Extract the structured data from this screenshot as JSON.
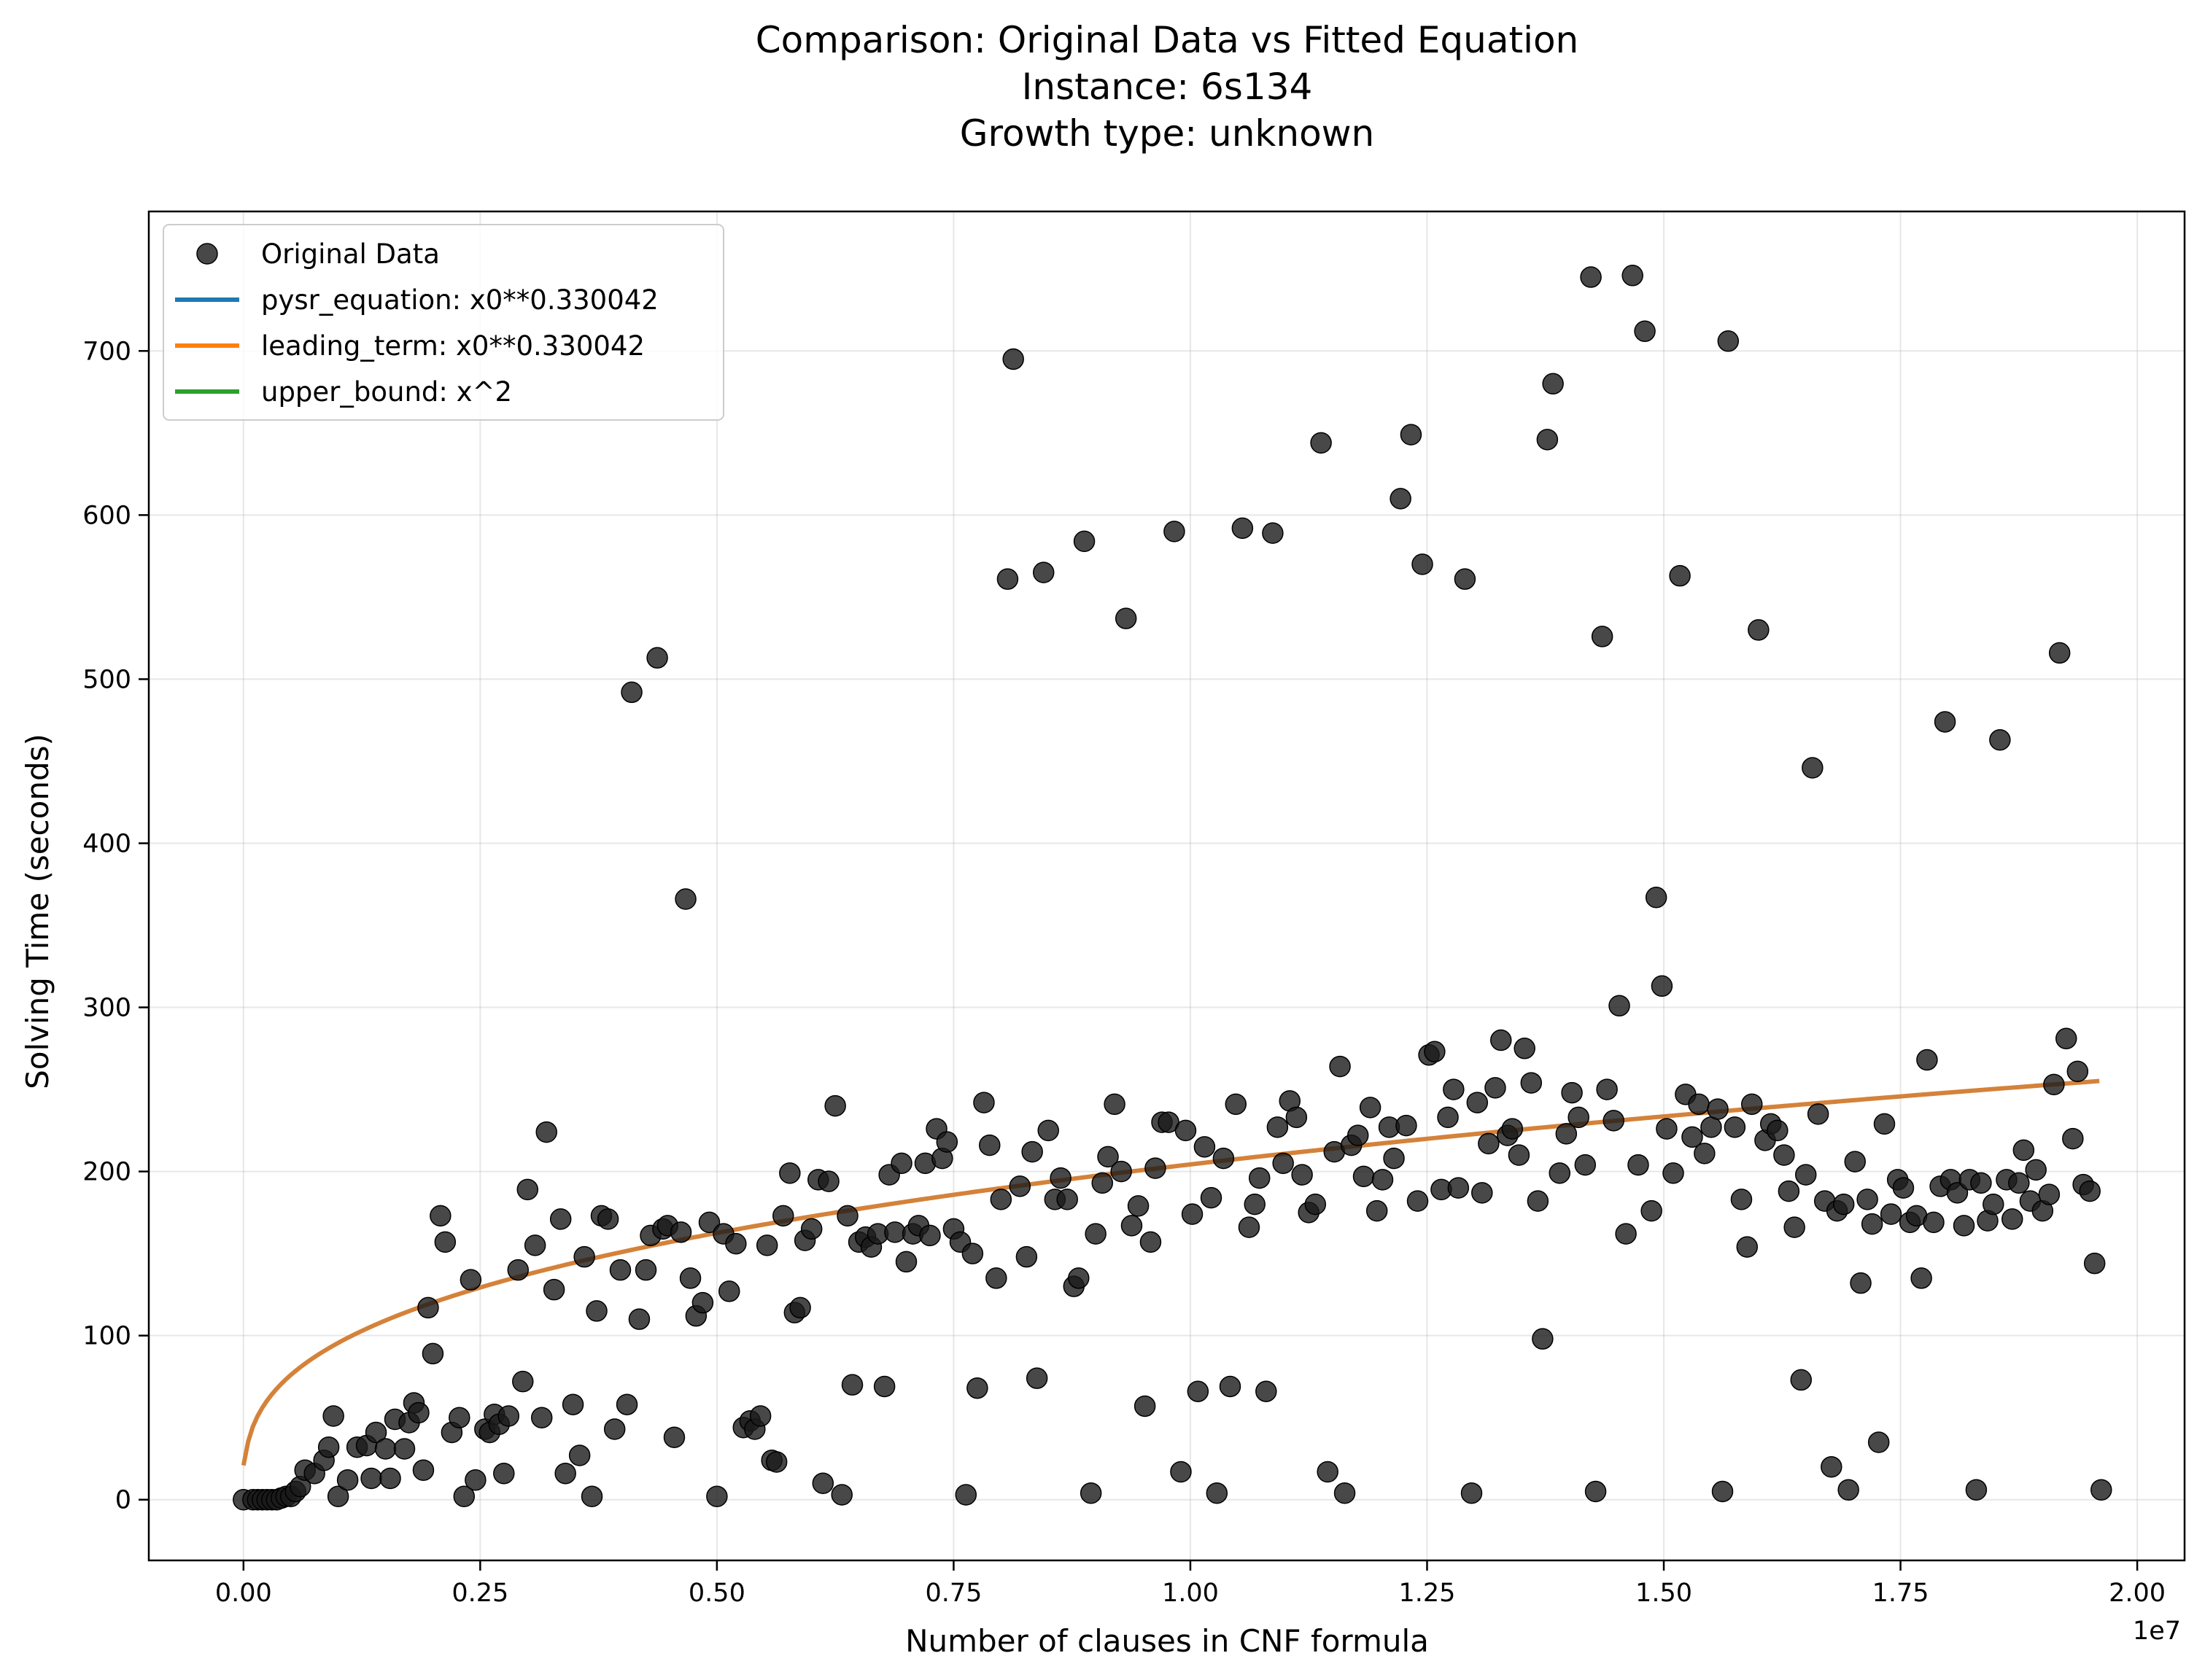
{
  "chart_data": {
    "type": "scatter",
    "title": [
      "Comparison: Original Data vs Fitted Equation",
      "Instance: 6s134",
      "Growth type: unknown"
    ],
    "xlabel": "Number of clauses in CNF formula",
    "ylabel": "Solving Time (seconds)",
    "x_offset_label": "1e7",
    "xlim": [
      -0.1,
      2.05
    ],
    "ylim": [
      -37,
      785
    ],
    "xticks": [
      0.0,
      0.25,
      0.5,
      0.75,
      1.0,
      1.25,
      1.5,
      1.75,
      2.0
    ],
    "xtick_labels": [
      "0.00",
      "0.25",
      "0.50",
      "0.75",
      "1.00",
      "1.25",
      "1.50",
      "1.75",
      "2.00"
    ],
    "yticks": [
      0,
      100,
      200,
      300,
      400,
      500,
      600,
      700
    ],
    "ytick_labels": [
      "0",
      "100",
      "200",
      "300",
      "400",
      "500",
      "600",
      "700"
    ],
    "grid": true,
    "legend_position": "top-left",
    "legend": [
      {
        "label": "Original Data",
        "kind": "marker",
        "color": "#1a1a1a"
      },
      {
        "label": "pysr_equation: x0**0.330042",
        "kind": "line",
        "color": "#1f77b4"
      },
      {
        "label": "leading_term: x0**0.330042",
        "kind": "line",
        "color": "#ff7f0e"
      },
      {
        "label": "upper_bound: x^2",
        "kind": "line",
        "color": "#2ca02c"
      }
    ],
    "fitted_curve": {
      "equation": "x0**0.330042",
      "x_range": [
        0.0,
        1.96
      ],
      "color": "#d4823a"
    },
    "points": [
      [
        0.0,
        0
      ],
      [
        0.01,
        0
      ],
      [
        0.015,
        0
      ],
      [
        0.02,
        0
      ],
      [
        0.025,
        0
      ],
      [
        0.03,
        0
      ],
      [
        0.035,
        0
      ],
      [
        0.04,
        1
      ],
      [
        0.045,
        2
      ],
      [
        0.05,
        2
      ],
      [
        0.055,
        5
      ],
      [
        0.06,
        8
      ],
      [
        0.065,
        18
      ],
      [
        0.075,
        16
      ],
      [
        0.085,
        24
      ],
      [
        0.09,
        32
      ],
      [
        0.095,
        51
      ],
      [
        0.1,
        2
      ],
      [
        0.11,
        12
      ],
      [
        0.12,
        32
      ],
      [
        0.13,
        33
      ],
      [
        0.135,
        13
      ],
      [
        0.14,
        41
      ],
      [
        0.15,
        31
      ],
      [
        0.155,
        13
      ],
      [
        0.16,
        49
      ],
      [
        0.17,
        31
      ],
      [
        0.175,
        47
      ],
      [
        0.18,
        59
      ],
      [
        0.185,
        53
      ],
      [
        0.19,
        18
      ],
      [
        0.195,
        117
      ],
      [
        0.2,
        89
      ],
      [
        0.208,
        173
      ],
      [
        0.213,
        157
      ],
      [
        0.22,
        41
      ],
      [
        0.228,
        50
      ],
      [
        0.233,
        2
      ],
      [
        0.24,
        134
      ],
      [
        0.245,
        12
      ],
      [
        0.255,
        43
      ],
      [
        0.26,
        41
      ],
      [
        0.265,
        52
      ],
      [
        0.27,
        46
      ],
      [
        0.275,
        16
      ],
      [
        0.28,
        51
      ],
      [
        0.29,
        140
      ],
      [
        0.295,
        72
      ],
      [
        0.3,
        189
      ],
      [
        0.308,
        155
      ],
      [
        0.315,
        50
      ],
      [
        0.32,
        224
      ],
      [
        0.328,
        128
      ],
      [
        0.335,
        171
      ],
      [
        0.34,
        16
      ],
      [
        0.348,
        58
      ],
      [
        0.355,
        27
      ],
      [
        0.36,
        148
      ],
      [
        0.368,
        2
      ],
      [
        0.373,
        115
      ],
      [
        0.378,
        173
      ],
      [
        0.385,
        171
      ],
      [
        0.392,
        43
      ],
      [
        0.398,
        140
      ],
      [
        0.405,
        58
      ],
      [
        0.41,
        492
      ],
      [
        0.418,
        110
      ],
      [
        0.425,
        140
      ],
      [
        0.43,
        161
      ],
      [
        0.437,
        513
      ],
      [
        0.443,
        165
      ],
      [
        0.448,
        167
      ],
      [
        0.455,
        38
      ],
      [
        0.462,
        163
      ],
      [
        0.467,
        366
      ],
      [
        0.472,
        135
      ],
      [
        0.478,
        112
      ],
      [
        0.485,
        120
      ],
      [
        0.492,
        169
      ],
      [
        0.5,
        2
      ],
      [
        0.507,
        162
      ],
      [
        0.513,
        127
      ],
      [
        0.52,
        156
      ],
      [
        0.528,
        44
      ],
      [
        0.535,
        48
      ],
      [
        0.54,
        43
      ],
      [
        0.546,
        51
      ],
      [
        0.553,
        155
      ],
      [
        0.558,
        24
      ],
      [
        0.563,
        23
      ],
      [
        0.57,
        173
      ],
      [
        0.577,
        199
      ],
      [
        0.582,
        114
      ],
      [
        0.588,
        117
      ],
      [
        0.593,
        158
      ],
      [
        0.6,
        165
      ],
      [
        0.607,
        195
      ],
      [
        0.612,
        10
      ],
      [
        0.618,
        194
      ],
      [
        0.625,
        240
      ],
      [
        0.632,
        3
      ],
      [
        0.638,
        173
      ],
      [
        0.643,
        70
      ],
      [
        0.65,
        157
      ],
      [
        0.657,
        160
      ],
      [
        0.663,
        154
      ],
      [
        0.67,
        162
      ],
      [
        0.677,
        69
      ],
      [
        0.682,
        198
      ],
      [
        0.688,
        163
      ],
      [
        0.695,
        205
      ],
      [
        0.7,
        145
      ],
      [
        0.707,
        162
      ],
      [
        0.713,
        167
      ],
      [
        0.72,
        205
      ],
      [
        0.725,
        161
      ],
      [
        0.732,
        226
      ],
      [
        0.738,
        208
      ],
      [
        0.743,
        218
      ],
      [
        0.75,
        165
      ],
      [
        0.757,
        157
      ],
      [
        0.763,
        3
      ],
      [
        0.77,
        150
      ],
      [
        0.775,
        68
      ],
      [
        0.782,
        242
      ],
      [
        0.788,
        216
      ],
      [
        0.795,
        135
      ],
      [
        0.8,
        183
      ],
      [
        0.807,
        561
      ],
      [
        0.813,
        695
      ],
      [
        0.82,
        191
      ],
      [
        0.827,
        148
      ],
      [
        0.833,
        212
      ],
      [
        0.838,
        74
      ],
      [
        0.845,
        565
      ],
      [
        0.85,
        225
      ],
      [
        0.857,
        183
      ],
      [
        0.863,
        196
      ],
      [
        0.87,
        183
      ],
      [
        0.877,
        130
      ],
      [
        0.882,
        135
      ],
      [
        0.888,
        584
      ],
      [
        0.895,
        4
      ],
      [
        0.9,
        162
      ],
      [
        0.907,
        193
      ],
      [
        0.913,
        209
      ],
      [
        0.92,
        241
      ],
      [
        0.927,
        200
      ],
      [
        0.932,
        537
      ],
      [
        0.938,
        167
      ],
      [
        0.945,
        179
      ],
      [
        0.952,
        57
      ],
      [
        0.958,
        157
      ],
      [
        0.963,
        202
      ],
      [
        0.97,
        230
      ],
      [
        0.977,
        230
      ],
      [
        0.983,
        590
      ],
      [
        0.99,
        17
      ],
      [
        0.995,
        225
      ],
      [
        1.002,
        174
      ],
      [
        1.008,
        66
      ],
      [
        1.015,
        215
      ],
      [
        1.022,
        184
      ],
      [
        1.028,
        4
      ],
      [
        1.035,
        208
      ],
      [
        1.042,
        69
      ],
      [
        1.048,
        241
      ],
      [
        1.055,
        592
      ],
      [
        1.062,
        166
      ],
      [
        1.068,
        180
      ],
      [
        1.073,
        196
      ],
      [
        1.08,
        66
      ],
      [
        1.087,
        589
      ],
      [
        1.092,
        227
      ],
      [
        1.098,
        205
      ],
      [
        1.105,
        243
      ],
      [
        1.112,
        233
      ],
      [
        1.118,
        198
      ],
      [
        1.125,
        175
      ],
      [
        1.132,
        180
      ],
      [
        1.138,
        644
      ],
      [
        1.145,
        17
      ],
      [
        1.152,
        212
      ],
      [
        1.158,
        264
      ],
      [
        1.163,
        4
      ],
      [
        1.17,
        216
      ],
      [
        1.177,
        222
      ],
      [
        1.183,
        197
      ],
      [
        1.19,
        239
      ],
      [
        1.197,
        176
      ],
      [
        1.203,
        195
      ],
      [
        1.21,
        227
      ],
      [
        1.215,
        208
      ],
      [
        1.222,
        610
      ],
      [
        1.228,
        228
      ],
      [
        1.233,
        649
      ],
      [
        1.24,
        182
      ],
      [
        1.245,
        570
      ],
      [
        1.252,
        271
      ],
      [
        1.258,
        273
      ],
      [
        1.265,
        189
      ],
      [
        1.272,
        233
      ],
      [
        1.278,
        250
      ],
      [
        1.283,
        190
      ],
      [
        1.29,
        561
      ],
      [
        1.297,
        4
      ],
      [
        1.303,
        242
      ],
      [
        1.308,
        187
      ],
      [
        1.315,
        217
      ],
      [
        1.322,
        251
      ],
      [
        1.328,
        280
      ],
      [
        1.335,
        222
      ],
      [
        1.34,
        226
      ],
      [
        1.347,
        210
      ],
      [
        1.353,
        275
      ],
      [
        1.36,
        254
      ],
      [
        1.367,
        182
      ],
      [
        1.372,
        98
      ],
      [
        1.377,
        646
      ],
      [
        1.383,
        680
      ],
      [
        1.39,
        199
      ],
      [
        1.397,
        223
      ],
      [
        1.403,
        248
      ],
      [
        1.41,
        233
      ],
      [
        1.417,
        204
      ],
      [
        1.423,
        745
      ],
      [
        1.428,
        5
      ],
      [
        1.435,
        526
      ],
      [
        1.44,
        250
      ],
      [
        1.447,
        231
      ],
      [
        1.453,
        301
      ],
      [
        1.46,
        162
      ],
      [
        1.467,
        746
      ],
      [
        1.473,
        204
      ],
      [
        1.48,
        712
      ],
      [
        1.487,
        176
      ],
      [
        1.492,
        367
      ],
      [
        1.498,
        313
      ],
      [
        1.503,
        226
      ],
      [
        1.51,
        199
      ],
      [
        1.517,
        563
      ],
      [
        1.523,
        247
      ],
      [
        1.53,
        221
      ],
      [
        1.537,
        241
      ],
      [
        1.543,
        211
      ],
      [
        1.55,
        227
      ],
      [
        1.557,
        238
      ],
      [
        1.562,
        5
      ],
      [
        1.568,
        706
      ],
      [
        1.575,
        227
      ],
      [
        1.582,
        183
      ],
      [
        1.588,
        154
      ],
      [
        1.593,
        241
      ],
      [
        1.6,
        530
      ],
      [
        1.607,
        219
      ],
      [
        1.613,
        229
      ],
      [
        1.62,
        225
      ],
      [
        1.627,
        210
      ],
      [
        1.632,
        188
      ],
      [
        1.638,
        166
      ],
      [
        1.645,
        73
      ],
      [
        1.65,
        198
      ],
      [
        1.657,
        446
      ],
      [
        1.663,
        235
      ],
      [
        1.67,
        182
      ],
      [
        1.677,
        20
      ],
      [
        1.683,
        176
      ],
      [
        1.69,
        180
      ],
      [
        1.695,
        6
      ],
      [
        1.702,
        206
      ],
      [
        1.708,
        132
      ],
      [
        1.715,
        183
      ],
      [
        1.72,
        168
      ],
      [
        1.727,
        35
      ],
      [
        1.733,
        229
      ],
      [
        1.74,
        174
      ],
      [
        1.747,
        195
      ],
      [
        1.753,
        190
      ],
      [
        1.76,
        169
      ],
      [
        1.767,
        173
      ],
      [
        1.772,
        135
      ],
      [
        1.778,
        268
      ],
      [
        1.785,
        169
      ],
      [
        1.792,
        191
      ],
      [
        1.797,
        474
      ],
      [
        1.803,
        195
      ],
      [
        1.81,
        187
      ],
      [
        1.817,
        167
      ],
      [
        1.823,
        195
      ],
      [
        1.83,
        6
      ],
      [
        1.835,
        193
      ],
      [
        1.842,
        170
      ],
      [
        1.848,
        180
      ],
      [
        1.855,
        463
      ],
      [
        1.862,
        195
      ],
      [
        1.868,
        171
      ],
      [
        1.875,
        193
      ],
      [
        1.88,
        213
      ],
      [
        1.887,
        182
      ],
      [
        1.893,
        201
      ],
      [
        1.9,
        176
      ],
      [
        1.907,
        186
      ],
      [
        1.912,
        253
      ],
      [
        1.918,
        516
      ],
      [
        1.925,
        281
      ],
      [
        1.932,
        220
      ],
      [
        1.937,
        261
      ],
      [
        1.943,
        192
      ],
      [
        1.95,
        188
      ],
      [
        1.955,
        144
      ],
      [
        1.962,
        6
      ]
    ]
  }
}
